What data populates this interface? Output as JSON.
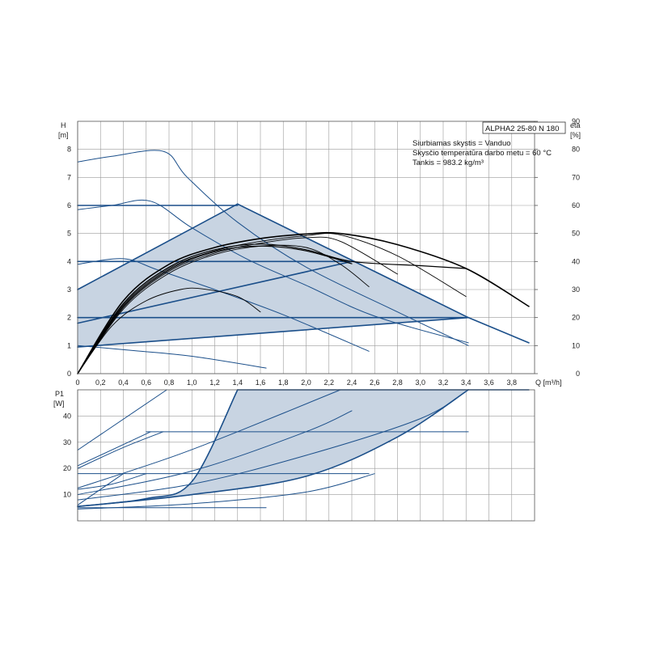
{
  "title": "ALPHA2 25-80 N 180",
  "info_lines": [
    "Siurbiamas skystis = Vanduo",
    "Skysčio temperatūra darbo metu = 60 °C",
    "Tankis = 983.2 kg/m³"
  ],
  "axes": {
    "h_label": [
      "H",
      "[m]"
    ],
    "eta_label": [
      "eta",
      "[%]"
    ],
    "q_label": "Q [m³/h]",
    "p_label": [
      "P1",
      "[W]"
    ]
  },
  "colors": {
    "envelope_fill": "#c8d4e2",
    "blue_curve": "#1b4f8a",
    "black_curve": "#000000",
    "grid": "#9a9a9a"
  },
  "chart_data": [
    {
      "type": "line",
      "name": "head",
      "xlim": [
        0,
        4.0
      ],
      "ylim": [
        0,
        9
      ],
      "y2lim": [
        0,
        100
      ],
      "grid": true,
      "x_ticks": [
        0,
        0.2,
        0.4,
        0.6,
        0.8,
        1.0,
        1.2,
        1.4,
        1.6,
        1.8,
        2.0,
        2.2,
        2.4,
        2.6,
        2.8,
        3.0,
        3.2,
        3.4,
        3.6,
        3.8
      ],
      "x_tick_labels": [
        "0",
        "0,2",
        "0,4",
        "0,6",
        "0,8",
        "1,0",
        "1,2",
        "1,4",
        "1,6",
        "1,8",
        "2,0",
        "2,2",
        "2,4",
        "2,6",
        "2,8",
        "3,0",
        "3,2",
        "3,4",
        "3,6",
        "3,8"
      ],
      "y_ticks": [
        0,
        1,
        2,
        3,
        4,
        5,
        6,
        7,
        8
      ],
      "y2_ticks": [
        0,
        10,
        20,
        30,
        40,
        50,
        60,
        70,
        80,
        90
      ],
      "envelope": [
        [
          0,
          0.95
        ],
        [
          0,
          3.0
        ],
        [
          1.4,
          6.05
        ],
        [
          3.42,
          2.0
        ],
        [
          0,
          0.95
        ]
      ],
      "series": [
        {
          "style": "blue",
          "width": 1.0,
          "points": [
            [
              0,
              7.55
            ],
            [
              0.3,
              7.75
            ],
            [
              0.75,
              7.93
            ],
            [
              0.96,
              7.0
            ],
            [
              1.4,
              5.4
            ],
            [
              2.0,
              3.8
            ],
            [
              2.8,
              2.2
            ],
            [
              3.42,
              1.0
            ]
          ]
        },
        {
          "style": "blue",
          "width": 1.0,
          "points": [
            [
              0,
              5.85
            ],
            [
              0.3,
              6.0
            ],
            [
              0.64,
              6.15
            ],
            [
              1.0,
              5.2
            ],
            [
              1.5,
              4.05
            ],
            [
              2.0,
              3.15
            ],
            [
              2.6,
              2.05
            ],
            [
              3.42,
              1.1
            ]
          ]
        },
        {
          "style": "blue",
          "width": 1.0,
          "points": [
            [
              0,
              3.9
            ],
            [
              0.4,
              4.1
            ],
            [
              0.7,
              3.7
            ],
            [
              1.2,
              3.0
            ],
            [
              1.8,
              2.1
            ],
            [
              2.55,
              0.8
            ]
          ]
        },
        {
          "style": "blue",
          "width": 1.0,
          "points": [
            [
              0,
              1.0
            ],
            [
              0.5,
              0.82
            ],
            [
              1.0,
              0.62
            ],
            [
              1.65,
              0.2
            ]
          ]
        },
        {
          "style": "blue",
          "width": 1.6,
          "points": [
            [
              0,
              6.0
            ],
            [
              1.4,
              6.0
            ]
          ]
        },
        {
          "style": "blue",
          "width": 1.6,
          "points": [
            [
              0,
              4.0
            ],
            [
              2.4,
              4.0
            ]
          ]
        },
        {
          "style": "blue",
          "width": 1.6,
          "points": [
            [
              0,
              2.0
            ],
            [
              3.42,
              2.0
            ]
          ]
        },
        {
          "style": "blue",
          "width": 1.6,
          "points": [
            [
              0,
              3.0
            ],
            [
              1.4,
              6.05
            ]
          ]
        },
        {
          "style": "blue",
          "width": 1.6,
          "points": [
            [
              1.4,
              6.05
            ],
            [
              3.42,
              2.0
            ]
          ]
        },
        {
          "style": "blue",
          "width": 1.6,
          "points": [
            [
              0,
              0.95
            ],
            [
              3.42,
              2.0
            ]
          ]
        },
        {
          "style": "blue",
          "width": 1.6,
          "points": [
            [
              0,
              1.8
            ],
            [
              2.4,
              4.0
            ]
          ]
        },
        {
          "style": "blue",
          "width": 1.6,
          "points": [
            [
              3.42,
              2.0
            ],
            [
              3.95,
              1.1
            ]
          ]
        },
        {
          "style": "black",
          "width": 1.6,
          "points": [
            [
              0,
              0
            ],
            [
              0.4,
              2.6
            ],
            [
              0.8,
              3.9
            ],
            [
              1.2,
              4.5
            ],
            [
              1.6,
              4.82
            ],
            [
              2.0,
              4.98
            ],
            [
              2.3,
              5.0
            ],
            [
              2.8,
              4.6
            ],
            [
              3.4,
              3.75
            ],
            [
              3.95,
              2.4
            ]
          ]
        },
        {
          "style": "black",
          "width": 0.9,
          "points": [
            [
              0,
              0
            ],
            [
              0.4,
              2.45
            ],
            [
              0.8,
              3.75
            ],
            [
              1.2,
              4.38
            ],
            [
              1.6,
              4.72
            ],
            [
              2.0,
              4.92
            ],
            [
              2.3,
              4.95
            ],
            [
              2.8,
              4.2
            ],
            [
              3.4,
              2.75
            ]
          ]
        },
        {
          "style": "black",
          "width": 0.9,
          "points": [
            [
              0,
              0
            ],
            [
              0.4,
              2.35
            ],
            [
              0.8,
              3.65
            ],
            [
              1.2,
              4.3
            ],
            [
              1.6,
              4.65
            ],
            [
              2.0,
              4.85
            ],
            [
              2.3,
              4.72
            ],
            [
              2.8,
              3.55
            ]
          ]
        },
        {
          "style": "black",
          "width": 0.9,
          "points": [
            [
              0,
              0
            ],
            [
              0.4,
              2.3
            ],
            [
              0.8,
              3.58
            ],
            [
              1.2,
              4.25
            ],
            [
              1.6,
              4.55
            ],
            [
              2.0,
              4.5
            ],
            [
              2.3,
              3.9
            ],
            [
              2.55,
              3.1
            ]
          ]
        },
        {
          "style": "black",
          "width": 0.9,
          "points": [
            [
              0,
              0
            ],
            [
              0.3,
              1.7
            ],
            [
              0.6,
              2.6
            ],
            [
              0.9,
              3.0
            ],
            [
              1.1,
              3.02
            ],
            [
              1.4,
              2.75
            ],
            [
              1.6,
              2.2
            ]
          ]
        },
        {
          "style": "black",
          "width": 1.2,
          "points": [
            [
              0,
              0
            ],
            [
              0.4,
              2.5
            ],
            [
              0.8,
              3.8
            ],
            [
              1.2,
              4.42
            ],
            [
              1.6,
              4.62
            ],
            [
              2.0,
              4.42
            ],
            [
              2.4,
              4.0
            ],
            [
              3.0,
              3.85
            ],
            [
              3.4,
              3.75
            ]
          ]
        },
        {
          "style": "black",
          "width": 1.2,
          "points": [
            [
              0,
              0
            ],
            [
              0.4,
              2.4
            ],
            [
              0.8,
              3.7
            ],
            [
              1.2,
              4.35
            ],
            [
              1.6,
              4.55
            ],
            [
              2.0,
              4.38
            ],
            [
              2.4,
              3.92
            ]
          ]
        }
      ]
    },
    {
      "type": "line",
      "name": "power",
      "xlim": [
        0,
        4.0
      ],
      "ylim": [
        0,
        50
      ],
      "grid": true,
      "y_ticks": [
        10,
        20,
        30,
        40
      ],
      "envelope": [
        [
          0,
          5.5
        ],
        [
          1.4,
          50
        ],
        [
          3.42,
          50
        ],
        [
          0,
          5.5
        ]
      ],
      "series": [
        {
          "style": "blue",
          "width": 1.6,
          "points": [
            [
              1.4,
              50
            ],
            [
              3.95,
              50
            ]
          ]
        },
        {
          "style": "blue",
          "width": 1.6,
          "points": [
            [
              0,
              5.5
            ],
            [
              0.6,
              8.5
            ],
            [
              1.0,
              15.0
            ],
            [
              1.4,
              50
            ]
          ]
        },
        {
          "style": "blue",
          "width": 1.6,
          "points": [
            [
              0,
              5.5
            ],
            [
              1.0,
              10.0
            ],
            [
              2.0,
              17.0
            ],
            [
              2.8,
              32.0
            ],
            [
              3.42,
              50
            ]
          ]
        },
        {
          "style": "blue",
          "width": 1.0,
          "points": [
            [
              0,
              5.0
            ],
            [
              1.65,
              5.0
            ]
          ]
        },
        {
          "style": "blue",
          "width": 1.0,
          "points": [
            [
              0,
              18.0
            ],
            [
              2.55,
              18.0
            ]
          ]
        },
        {
          "style": "blue",
          "width": 1.0,
          "points": [
            [
              0.6,
              34.0
            ],
            [
              3.42,
              34.0
            ]
          ]
        },
        {
          "style": "blue",
          "width": 1.0,
          "points": [
            [
              0,
              27.0
            ],
            [
              0.78,
              50.0
            ]
          ]
        },
        {
          "style": "blue",
          "width": 1.0,
          "points": [
            [
              0,
              21.0
            ],
            [
              0.64,
              34.0
            ]
          ]
        },
        {
          "style": "blue",
          "width": 1.0,
          "points": [
            [
              0,
              6.0
            ],
            [
              0.4,
              18.0
            ]
          ]
        },
        {
          "style": "blue",
          "width": 1.0,
          "points": [
            [
              0,
              12.5
            ],
            [
              0.8,
              24.0
            ],
            [
              1.4,
              34.0
            ],
            [
              2.3,
              50.0
            ]
          ]
        },
        {
          "style": "blue",
          "width": 1.0,
          "points": [
            [
              0,
              8.0
            ],
            [
              1.0,
              14.0
            ],
            [
              2.0,
              25.0
            ],
            [
              3.0,
              39.0
            ],
            [
              3.42,
              50.0
            ]
          ]
        },
        {
          "style": "blue",
          "width": 1.0,
          "points": [
            [
              0,
              20.0
            ],
            [
              0.4,
              28.0
            ],
            [
              0.75,
              34.0
            ]
          ]
        },
        {
          "style": "blue",
          "width": 1.0,
          "points": [
            [
              0,
              4.5
            ],
            [
              1.0,
              6.5
            ],
            [
              2.0,
              11.0
            ],
            [
              2.6,
              18.0
            ]
          ]
        },
        {
          "style": "blue",
          "width": 1.0,
          "points": [
            [
              0,
              12.0
            ],
            [
              0.3,
              14.0
            ],
            [
              0.6,
              18.0
            ]
          ]
        },
        {
          "style": "blue",
          "width": 1.0,
          "points": [
            [
              0,
              10.0
            ],
            [
              1.0,
              19.0
            ],
            [
              2.0,
              34.0
            ],
            [
              2.4,
              42.0
            ]
          ]
        }
      ]
    }
  ]
}
